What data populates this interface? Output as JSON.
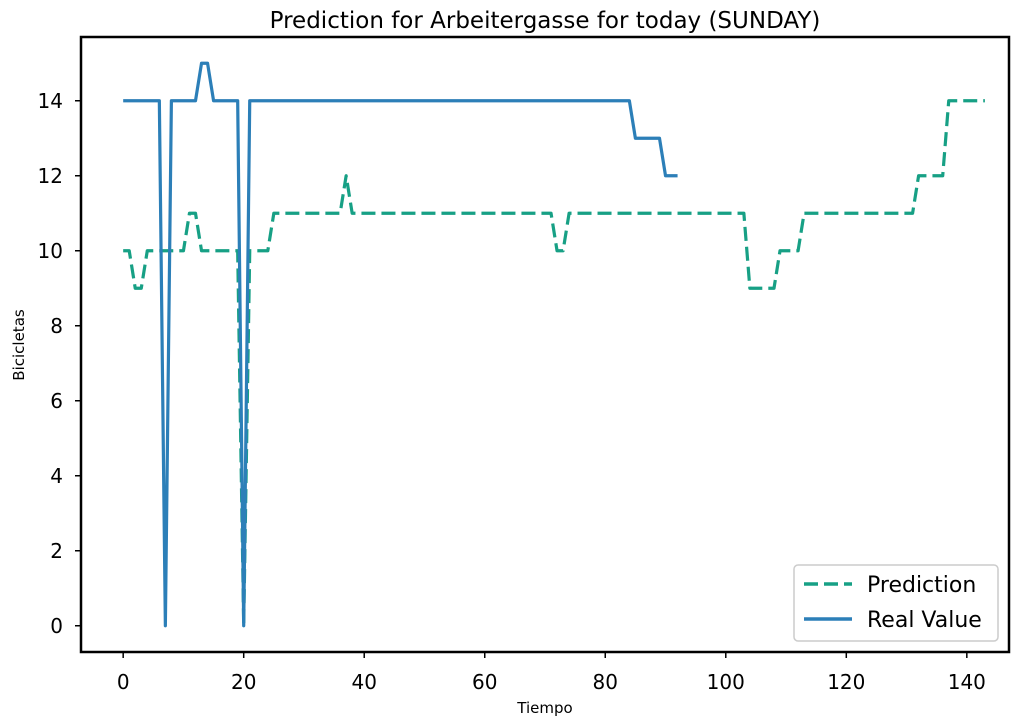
{
  "chart_data": {
    "type": "line",
    "title": "Prediction for Arbeitergasse for today (SUNDAY)",
    "xlabel": "Tiempo",
    "ylabel": "Bicicletas",
    "xlim": [
      -7,
      147
    ],
    "ylim": [
      -0.7,
      15.7
    ],
    "xticks": [
      0,
      20,
      40,
      60,
      80,
      100,
      120,
      140
    ],
    "yticks": [
      0,
      2,
      4,
      6,
      8,
      10,
      12,
      14
    ],
    "grid": false,
    "legend_position": "lower right",
    "series": [
      {
        "name": "Prediction",
        "style": "dashed",
        "color": "#17a085",
        "x": [
          0,
          1,
          2,
          3,
          4,
          5,
          6,
          7,
          8,
          9,
          10,
          11,
          12,
          13,
          14,
          15,
          16,
          17,
          18,
          19,
          20,
          21,
          22,
          23,
          24,
          25,
          26,
          27,
          28,
          29,
          30,
          31,
          32,
          33,
          34,
          35,
          36,
          37,
          38,
          39,
          40,
          41,
          42,
          43,
          44,
          45,
          46,
          47,
          48,
          49,
          50,
          51,
          52,
          53,
          54,
          55,
          56,
          57,
          58,
          59,
          60,
          61,
          62,
          63,
          64,
          65,
          66,
          67,
          68,
          69,
          70,
          71,
          72,
          73,
          74,
          75,
          76,
          77,
          78,
          79,
          80,
          81,
          82,
          83,
          84,
          85,
          86,
          87,
          88,
          89,
          90,
          91,
          92,
          93,
          94,
          95,
          96,
          97,
          98,
          99,
          100,
          101,
          102,
          103,
          104,
          105,
          106,
          107,
          108,
          109,
          110,
          111,
          112,
          113,
          114,
          115,
          116,
          117,
          118,
          119,
          120,
          121,
          122,
          123,
          124,
          125,
          126,
          127,
          128,
          129,
          130,
          131,
          132,
          133,
          134,
          135,
          136,
          137,
          138,
          139,
          140,
          141,
          142,
          143
        ],
        "y": [
          10,
          10,
          9,
          9,
          10,
          10,
          10,
          10,
          10,
          10,
          10,
          11,
          11,
          10,
          10,
          10,
          10,
          10,
          10,
          10,
          0,
          10,
          10,
          10,
          10,
          11,
          11,
          11,
          11,
          11,
          11,
          11,
          11,
          11,
          11,
          11,
          11,
          12,
          11,
          11,
          11,
          11,
          11,
          11,
          11,
          11,
          11,
          11,
          11,
          11,
          11,
          11,
          11,
          11,
          11,
          11,
          11,
          11,
          11,
          11,
          11,
          11,
          11,
          11,
          11,
          11,
          11,
          11,
          11,
          11,
          11,
          11,
          10,
          10,
          11,
          11,
          11,
          11,
          11,
          11,
          11,
          11,
          11,
          11,
          11,
          11,
          11,
          11,
          11,
          11,
          11,
          11,
          11,
          11,
          11,
          11,
          11,
          11,
          11,
          11,
          11,
          11,
          11,
          11,
          9,
          9,
          9,
          9,
          9,
          10,
          10,
          10,
          10,
          11,
          11,
          11,
          11,
          11,
          11,
          11,
          11,
          11,
          11,
          11,
          11,
          11,
          11,
          11,
          11,
          11,
          11,
          11,
          12,
          12,
          12,
          12,
          12,
          14,
          14,
          14,
          14,
          14,
          14,
          14
        ]
      },
      {
        "name": "Real Value",
        "style": "solid",
        "color": "#2c7fb8",
        "x": [
          0,
          1,
          2,
          3,
          4,
          5,
          6,
          7,
          8,
          9,
          10,
          11,
          12,
          13,
          14,
          15,
          16,
          17,
          18,
          19,
          20,
          21,
          22,
          23,
          24,
          25,
          26,
          27,
          28,
          29,
          30,
          31,
          32,
          33,
          34,
          35,
          36,
          37,
          38,
          39,
          40,
          41,
          42,
          43,
          44,
          45,
          46,
          47,
          48,
          49,
          50,
          51,
          52,
          53,
          54,
          55,
          56,
          57,
          58,
          59,
          60,
          61,
          62,
          63,
          64,
          65,
          66,
          67,
          68,
          69,
          70,
          71,
          72,
          73,
          74,
          75,
          76,
          77,
          78,
          79,
          80,
          81,
          82,
          83,
          84,
          85,
          86,
          87,
          88,
          89,
          90,
          91,
          92
        ],
        "y": [
          14,
          14,
          14,
          14,
          14,
          14,
          14,
          0,
          14,
          14,
          14,
          14,
          14,
          15,
          15,
          14,
          14,
          14,
          14,
          14,
          0,
          14,
          14,
          14,
          14,
          14,
          14,
          14,
          14,
          14,
          14,
          14,
          14,
          14,
          14,
          14,
          14,
          14,
          14,
          14,
          14,
          14,
          14,
          14,
          14,
          14,
          14,
          14,
          14,
          14,
          14,
          14,
          14,
          14,
          14,
          14,
          14,
          14,
          14,
          14,
          14,
          14,
          14,
          14,
          14,
          14,
          14,
          14,
          14,
          14,
          14,
          14,
          14,
          14,
          14,
          14,
          14,
          14,
          14,
          14,
          14,
          14,
          14,
          14,
          14,
          13,
          13,
          13,
          13,
          13,
          12,
          12,
          12
        ]
      }
    ]
  }
}
